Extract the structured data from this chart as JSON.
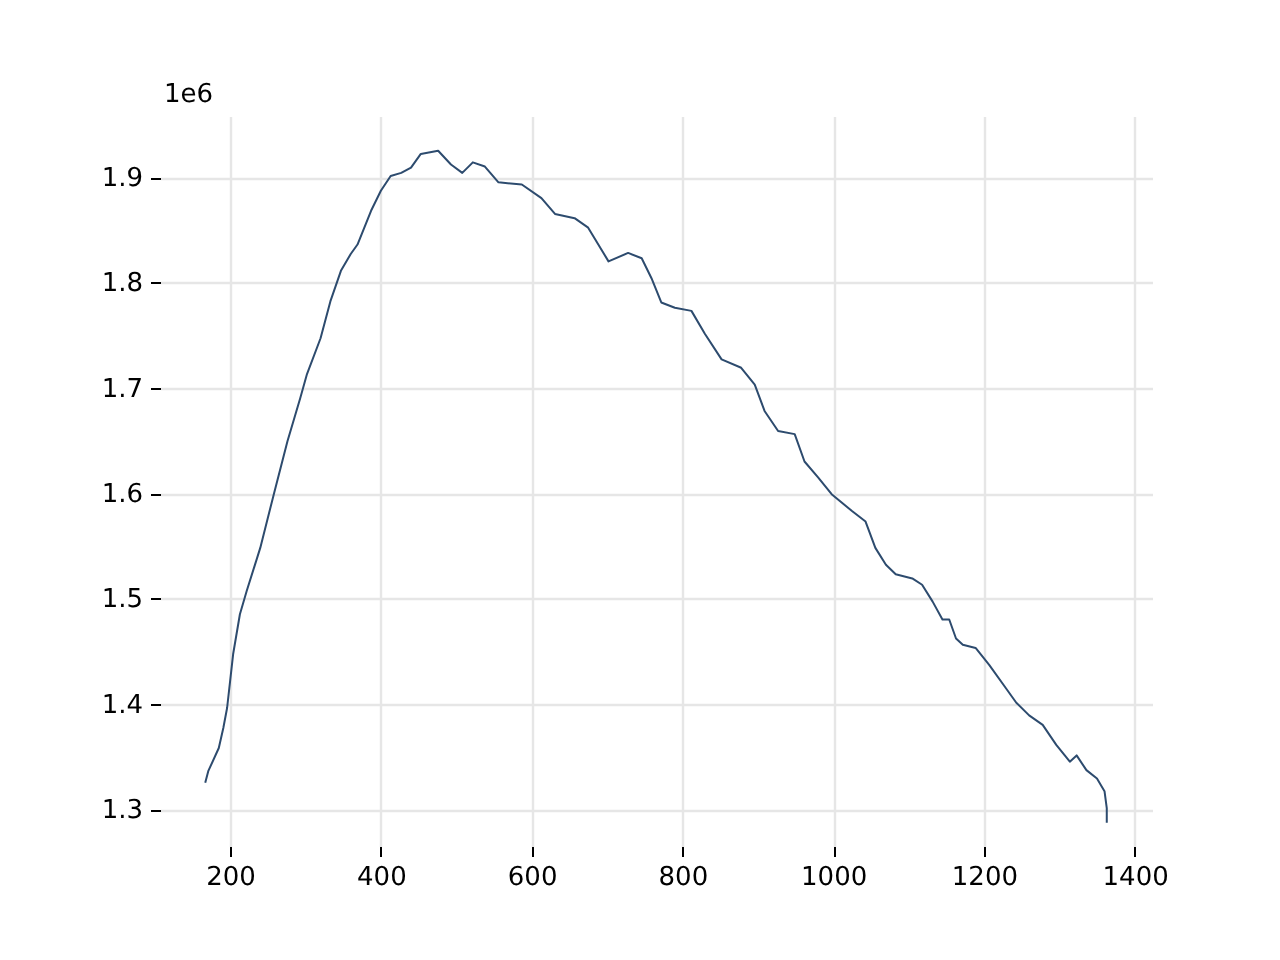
{
  "chart_data": {
    "type": "line",
    "x": [
      167,
      171,
      185,
      191,
      196,
      204,
      213,
      222,
      240,
      258,
      276,
      293,
      302,
      320,
      333,
      347,
      360,
      369,
      387,
      400,
      413,
      427,
      440,
      453,
      476,
      493,
      508,
      522,
      538,
      556,
      587,
      613,
      631,
      657,
      675,
      702,
      728,
      746,
      759,
      772,
      790,
      812,
      830,
      852,
      878,
      896,
      909,
      927,
      949,
      962,
      980,
      998,
      1025,
      1043,
      1056,
      1070,
      1083,
      1105,
      1118,
      1132,
      1145,
      1154,
      1163,
      1172,
      1189,
      1207,
      1229,
      1243,
      1260,
      1278,
      1296,
      1314,
      1323,
      1336,
      1350,
      1360,
      1363,
      1363
    ],
    "series": [
      {
        "color": "#2d4b6e",
        "values": [
          1.325,
          1.336,
          1.358,
          1.377,
          1.396,
          1.447,
          1.485,
          1.507,
          1.548,
          1.599,
          1.649,
          1.69,
          1.713,
          1.747,
          1.782,
          1.811,
          1.827,
          1.836,
          1.868,
          1.887,
          1.901,
          1.904,
          1.909,
          1.922,
          1.925,
          1.912,
          1.904,
          1.914,
          1.91,
          1.895,
          1.893,
          1.88,
          1.865,
          1.861,
          1.852,
          1.82,
          1.828,
          1.823,
          1.804,
          1.781,
          1.776,
          1.773,
          1.751,
          1.727,
          1.719,
          1.703,
          1.678,
          1.659,
          1.656,
          1.63,
          1.615,
          1.599,
          1.583,
          1.573,
          1.548,
          1.532,
          1.523,
          1.519,
          1.513,
          1.497,
          1.48,
          1.48,
          1.462,
          1.456,
          1.453,
          1.437,
          1.415,
          1.401,
          1.389,
          1.38,
          1.361,
          1.345,
          1.351,
          1.337,
          1.329,
          1.317,
          1.301,
          1.287
        ]
      }
    ],
    "xlim": [
      107,
      1423
    ],
    "xticks": [
      200,
      400,
      600,
      800,
      1000,
      1200,
      1400
    ],
    "ylim": [
      1.265,
      1.958
    ],
    "yticks": [
      1.3,
      1.4,
      1.5,
      1.6,
      1.7,
      1.8,
      1.9
    ],
    "grid": true,
    "annotations": [
      "1e6"
    ]
  }
}
